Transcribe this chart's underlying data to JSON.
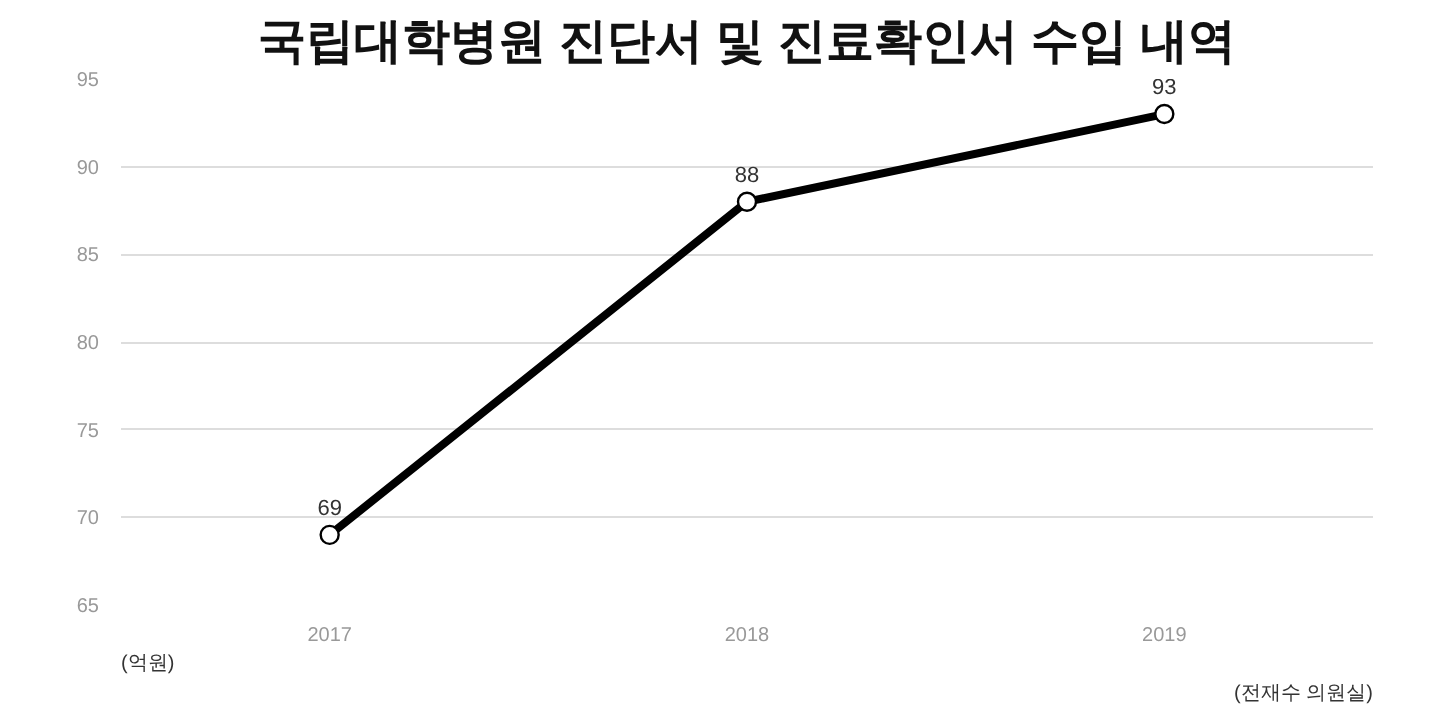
{
  "chart_data": {
    "type": "line",
    "title": "국립대학병원 진단서 및 진료확인서 수입 내역",
    "categories": [
      "2017",
      "2018",
      "2019"
    ],
    "series": [
      {
        "color": "#000000",
        "values": [
          69,
          88,
          93
        ]
      }
    ],
    "ylim": [
      65,
      95
    ],
    "yticks": [
      65,
      70,
      75,
      80,
      85,
      90,
      95
    ],
    "grid": "y",
    "marker": "circle",
    "line_style": "solid",
    "data_labels": true,
    "annotations": [
      "(억원)",
      "(전재수 의원실)"
    ]
  }
}
